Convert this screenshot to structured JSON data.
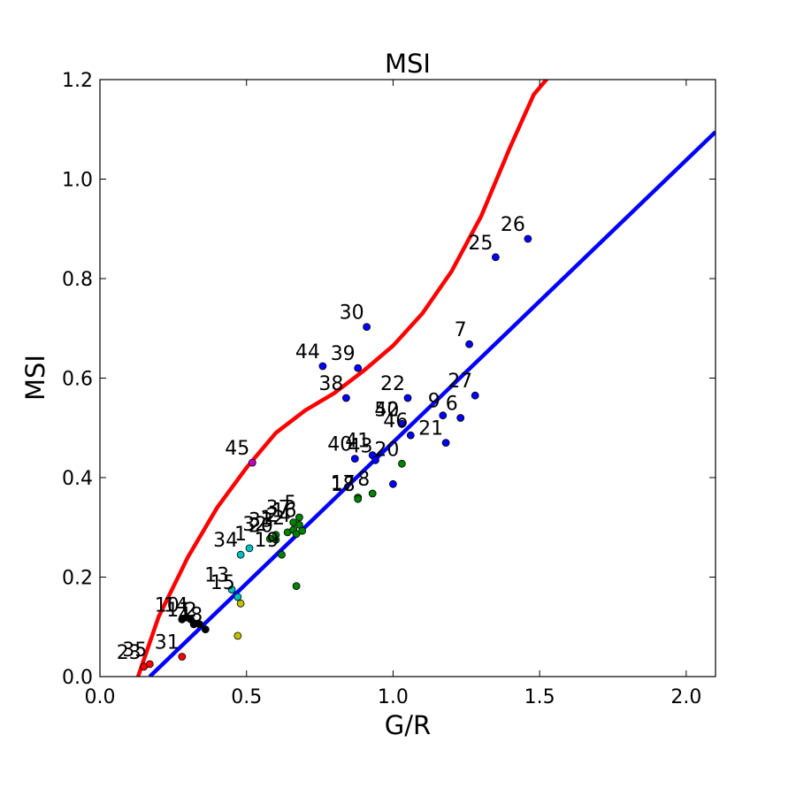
{
  "chart_data": {
    "type": "scatter",
    "title": "MSI",
    "xlabel": "G/R",
    "ylabel": "MSI",
    "xlim": [
      0.0,
      2.1
    ],
    "ylim": [
      0.0,
      1.2
    ],
    "xticks": [
      "0.0",
      "0.5",
      "1.0",
      "1.5",
      "2.0"
    ],
    "yticks": [
      "0.0",
      "0.2",
      "0.4",
      "0.6",
      "0.8",
      "1.0",
      "1.2"
    ],
    "grid": false,
    "points": [
      {
        "label": "23",
        "x": 0.15,
        "y": 0.02,
        "color": "#ff0000"
      },
      {
        "label": "35",
        "x": 0.17,
        "y": 0.025,
        "color": "#ff0000"
      },
      {
        "label": "31",
        "x": 0.28,
        "y": 0.04,
        "color": "#ff0000"
      },
      {
        "label": "10",
        "x": 0.28,
        "y": 0.115,
        "color": "#000000"
      },
      {
        "label": "14",
        "x": 0.31,
        "y": 0.115,
        "color": "#000000"
      },
      {
        "label": "11",
        "x": 0.32,
        "y": 0.105,
        "color": "#000000"
      },
      {
        "label": "2",
        "x": 0.34,
        "y": 0.105,
        "color": "#000000"
      },
      {
        "label": "48",
        "x": 0.36,
        "y": 0.095,
        "color": "#000000"
      },
      {
        "label": "",
        "x": 0.47,
        "y": 0.082,
        "color": "#bfbf00"
      },
      {
        "label": "",
        "x": 0.48,
        "y": 0.147,
        "color": "#bfbf00"
      },
      {
        "label": "13",
        "x": 0.45,
        "y": 0.175,
        "color": "#00bfbf"
      },
      {
        "label": "15",
        "x": 0.47,
        "y": 0.16,
        "color": "#00bfbf"
      },
      {
        "label": "34",
        "x": 0.48,
        "y": 0.245,
        "color": "#00bfbf"
      },
      {
        "label": "1",
        "x": 0.51,
        "y": 0.258,
        "color": "#00bfbf"
      },
      {
        "label": "19",
        "x": 0.62,
        "y": 0.245,
        "color": "#008000"
      },
      {
        "label": "20",
        "x": 0.6,
        "y": 0.275,
        "color": "#008000"
      },
      {
        "label": "32",
        "x": 0.58,
        "y": 0.277,
        "color": "#008000"
      },
      {
        "label": "33",
        "x": 0.6,
        "y": 0.285,
        "color": "#008000"
      },
      {
        "label": "12",
        "x": 0.64,
        "y": 0.29,
        "color": "#008000"
      },
      {
        "label": "24",
        "x": 0.66,
        "y": 0.295,
        "color": "#008000"
      },
      {
        "label": "37",
        "x": 0.66,
        "y": 0.31,
        "color": "#008000"
      },
      {
        "label": "16",
        "x": 0.68,
        "y": 0.305,
        "color": "#008000"
      },
      {
        "label": "5",
        "x": 0.68,
        "y": 0.32,
        "color": "#008000"
      },
      {
        "label": "",
        "x": 0.67,
        "y": 0.287,
        "color": "#008000"
      },
      {
        "label": "",
        "x": 0.69,
        "y": 0.293,
        "color": "#008000"
      },
      {
        "label": "",
        "x": 0.67,
        "y": 0.182,
        "color": "#008000"
      },
      {
        "label": "17",
        "x": 0.88,
        "y": 0.36,
        "color": "#008000"
      },
      {
        "label": "18",
        "x": 0.88,
        "y": 0.357,
        "color": "#008000"
      },
      {
        "label": "8",
        "x": 0.93,
        "y": 0.368,
        "color": "#008000"
      },
      {
        "label": "20",
        "x": 1.03,
        "y": 0.428,
        "color": "#008000"
      },
      {
        "label": "50",
        "x": 1.03,
        "y": 0.508,
        "color": "#008000"
      },
      {
        "label": "",
        "x": 1.0,
        "y": 0.387,
        "color": "#0000ff"
      },
      {
        "label": "40",
        "x": 0.87,
        "y": 0.438,
        "color": "#0000ff"
      },
      {
        "label": "41",
        "x": 0.93,
        "y": 0.445,
        "color": "#0000ff"
      },
      {
        "label": "43",
        "x": 0.94,
        "y": 0.435,
        "color": "#0000ff"
      },
      {
        "label": "46",
        "x": 1.06,
        "y": 0.485,
        "color": "#0000ff"
      },
      {
        "label": "42",
        "x": 1.03,
        "y": 0.508,
        "color": "#0000ff"
      },
      {
        "label": "22",
        "x": 1.05,
        "y": 0.56,
        "color": "#0000ff"
      },
      {
        "label": "21",
        "x": 1.18,
        "y": 0.47,
        "color": "#0000ff"
      },
      {
        "label": "9",
        "x": 1.17,
        "y": 0.525,
        "color": "#0000ff"
      },
      {
        "label": "6",
        "x": 1.23,
        "y": 0.52,
        "color": "#0000ff"
      },
      {
        "label": "27",
        "x": 1.28,
        "y": 0.565,
        "color": "#0000ff"
      },
      {
        "label": "7",
        "x": 1.26,
        "y": 0.668,
        "color": "#0000ff"
      },
      {
        "label": "38",
        "x": 0.84,
        "y": 0.56,
        "color": "#0000ff"
      },
      {
        "label": "44",
        "x": 0.76,
        "y": 0.624,
        "color": "#0000ff"
      },
      {
        "label": "39",
        "x": 0.88,
        "y": 0.62,
        "color": "#0000ff"
      },
      {
        "label": "30",
        "x": 0.91,
        "y": 0.703,
        "color": "#0000ff"
      },
      {
        "label": "25",
        "x": 1.35,
        "y": 0.843,
        "color": "#0000ff"
      },
      {
        "label": "26",
        "x": 1.46,
        "y": 0.88,
        "color": "#0000ff"
      },
      {
        "label": "45",
        "x": 0.52,
        "y": 0.43,
        "color": "#bf00bf"
      }
    ],
    "lines": [
      {
        "name": "",
        "type": "cubic-fit",
        "color": "#ff0000",
        "x": [
          0.13,
          0.2,
          0.3,
          0.4,
          0.5,
          0.6,
          0.7,
          0.8,
          0.9,
          1.0,
          1.1,
          1.2,
          1.3,
          1.4,
          1.48,
          1.53
        ],
        "y": [
          0.0,
          0.12,
          0.24,
          0.34,
          0.42,
          0.49,
          0.535,
          0.57,
          0.615,
          0.665,
          0.73,
          0.815,
          0.925,
          1.065,
          1.17,
          1.205
        ]
      },
      {
        "name": "",
        "type": "linear-fit",
        "color": "#0000ff",
        "x": [
          0.17,
          2.1
        ],
        "y": [
          0.0,
          1.095
        ]
      }
    ]
  }
}
